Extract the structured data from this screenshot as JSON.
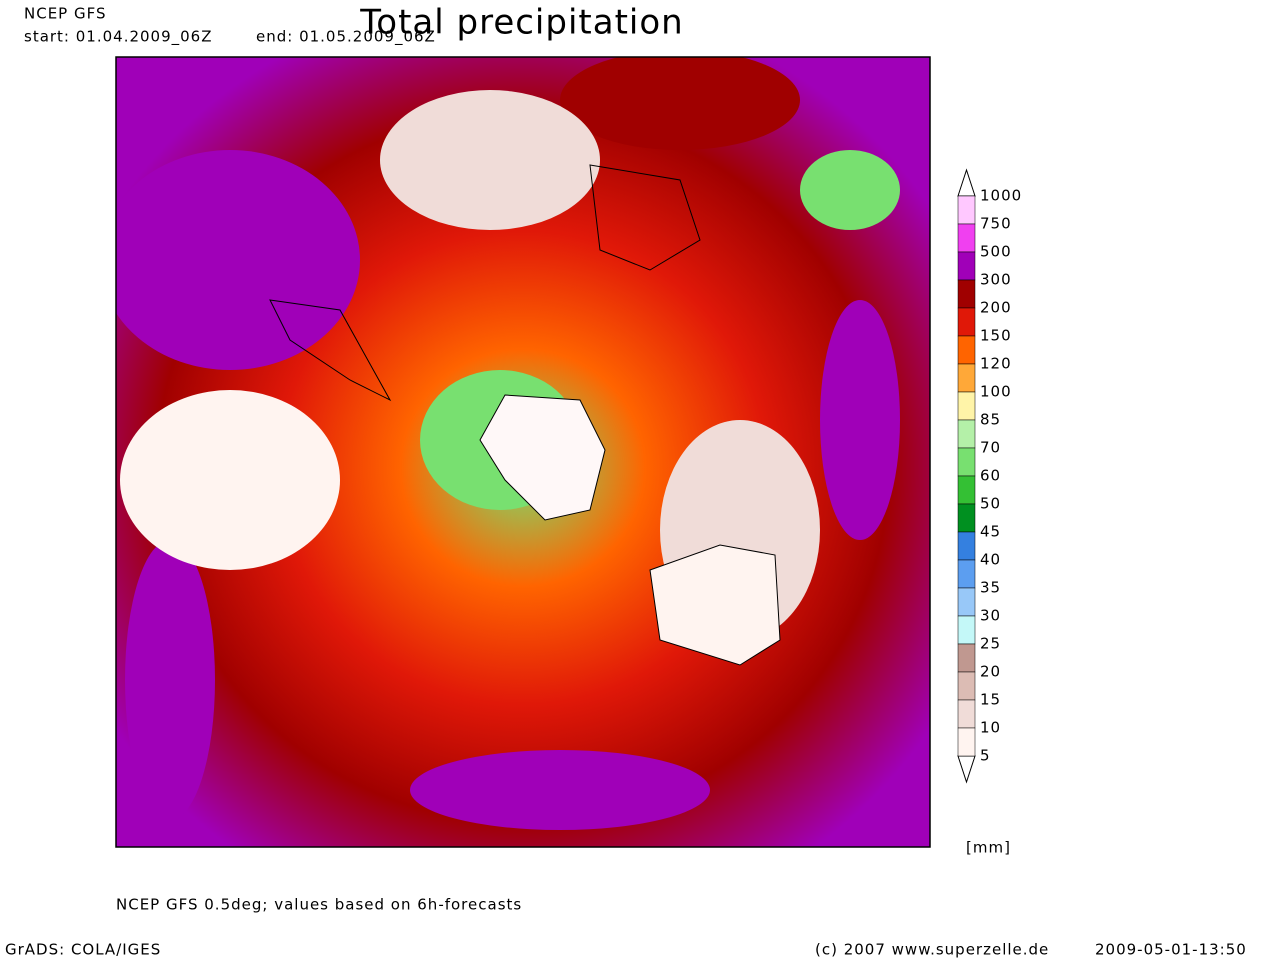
{
  "header": {
    "model": "NCEP GFS",
    "start": "start: 01.04.2009_06Z",
    "end": "end: 01.05.2009_06Z",
    "title": "Total precipitation"
  },
  "legend": {
    "labels": [
      "1000",
      "750",
      "500",
      "300",
      "200",
      "150",
      "120",
      "100",
      "85",
      "70",
      "60",
      "50",
      "45",
      "40",
      "35",
      "30",
      "25",
      "20",
      "15",
      "10",
      "5"
    ],
    "colors": [
      "#ffc8ff",
      "#f040f0",
      "#a000b8",
      "#a00000",
      "#e01808",
      "#ff6400",
      "#ffa838",
      "#fff4a8",
      "#b4f0a8",
      "#78e070",
      "#34c034",
      "#009020",
      "#3480e0",
      "#5c9ef0",
      "#98c8f8",
      "#c4f8f8",
      "#c09890",
      "#dcbcb4",
      "#f0dcd8",
      "#fff4f0"
    ],
    "unit": "[mm]"
  },
  "footer": {
    "note": "NCEP GFS 0.5deg; values based on 6h-forecasts",
    "software": "GrADS: COLA/IGES",
    "copyright": "(c) 2007 www.superzelle.de",
    "timestamp": "2009-05-01-13:50"
  }
}
